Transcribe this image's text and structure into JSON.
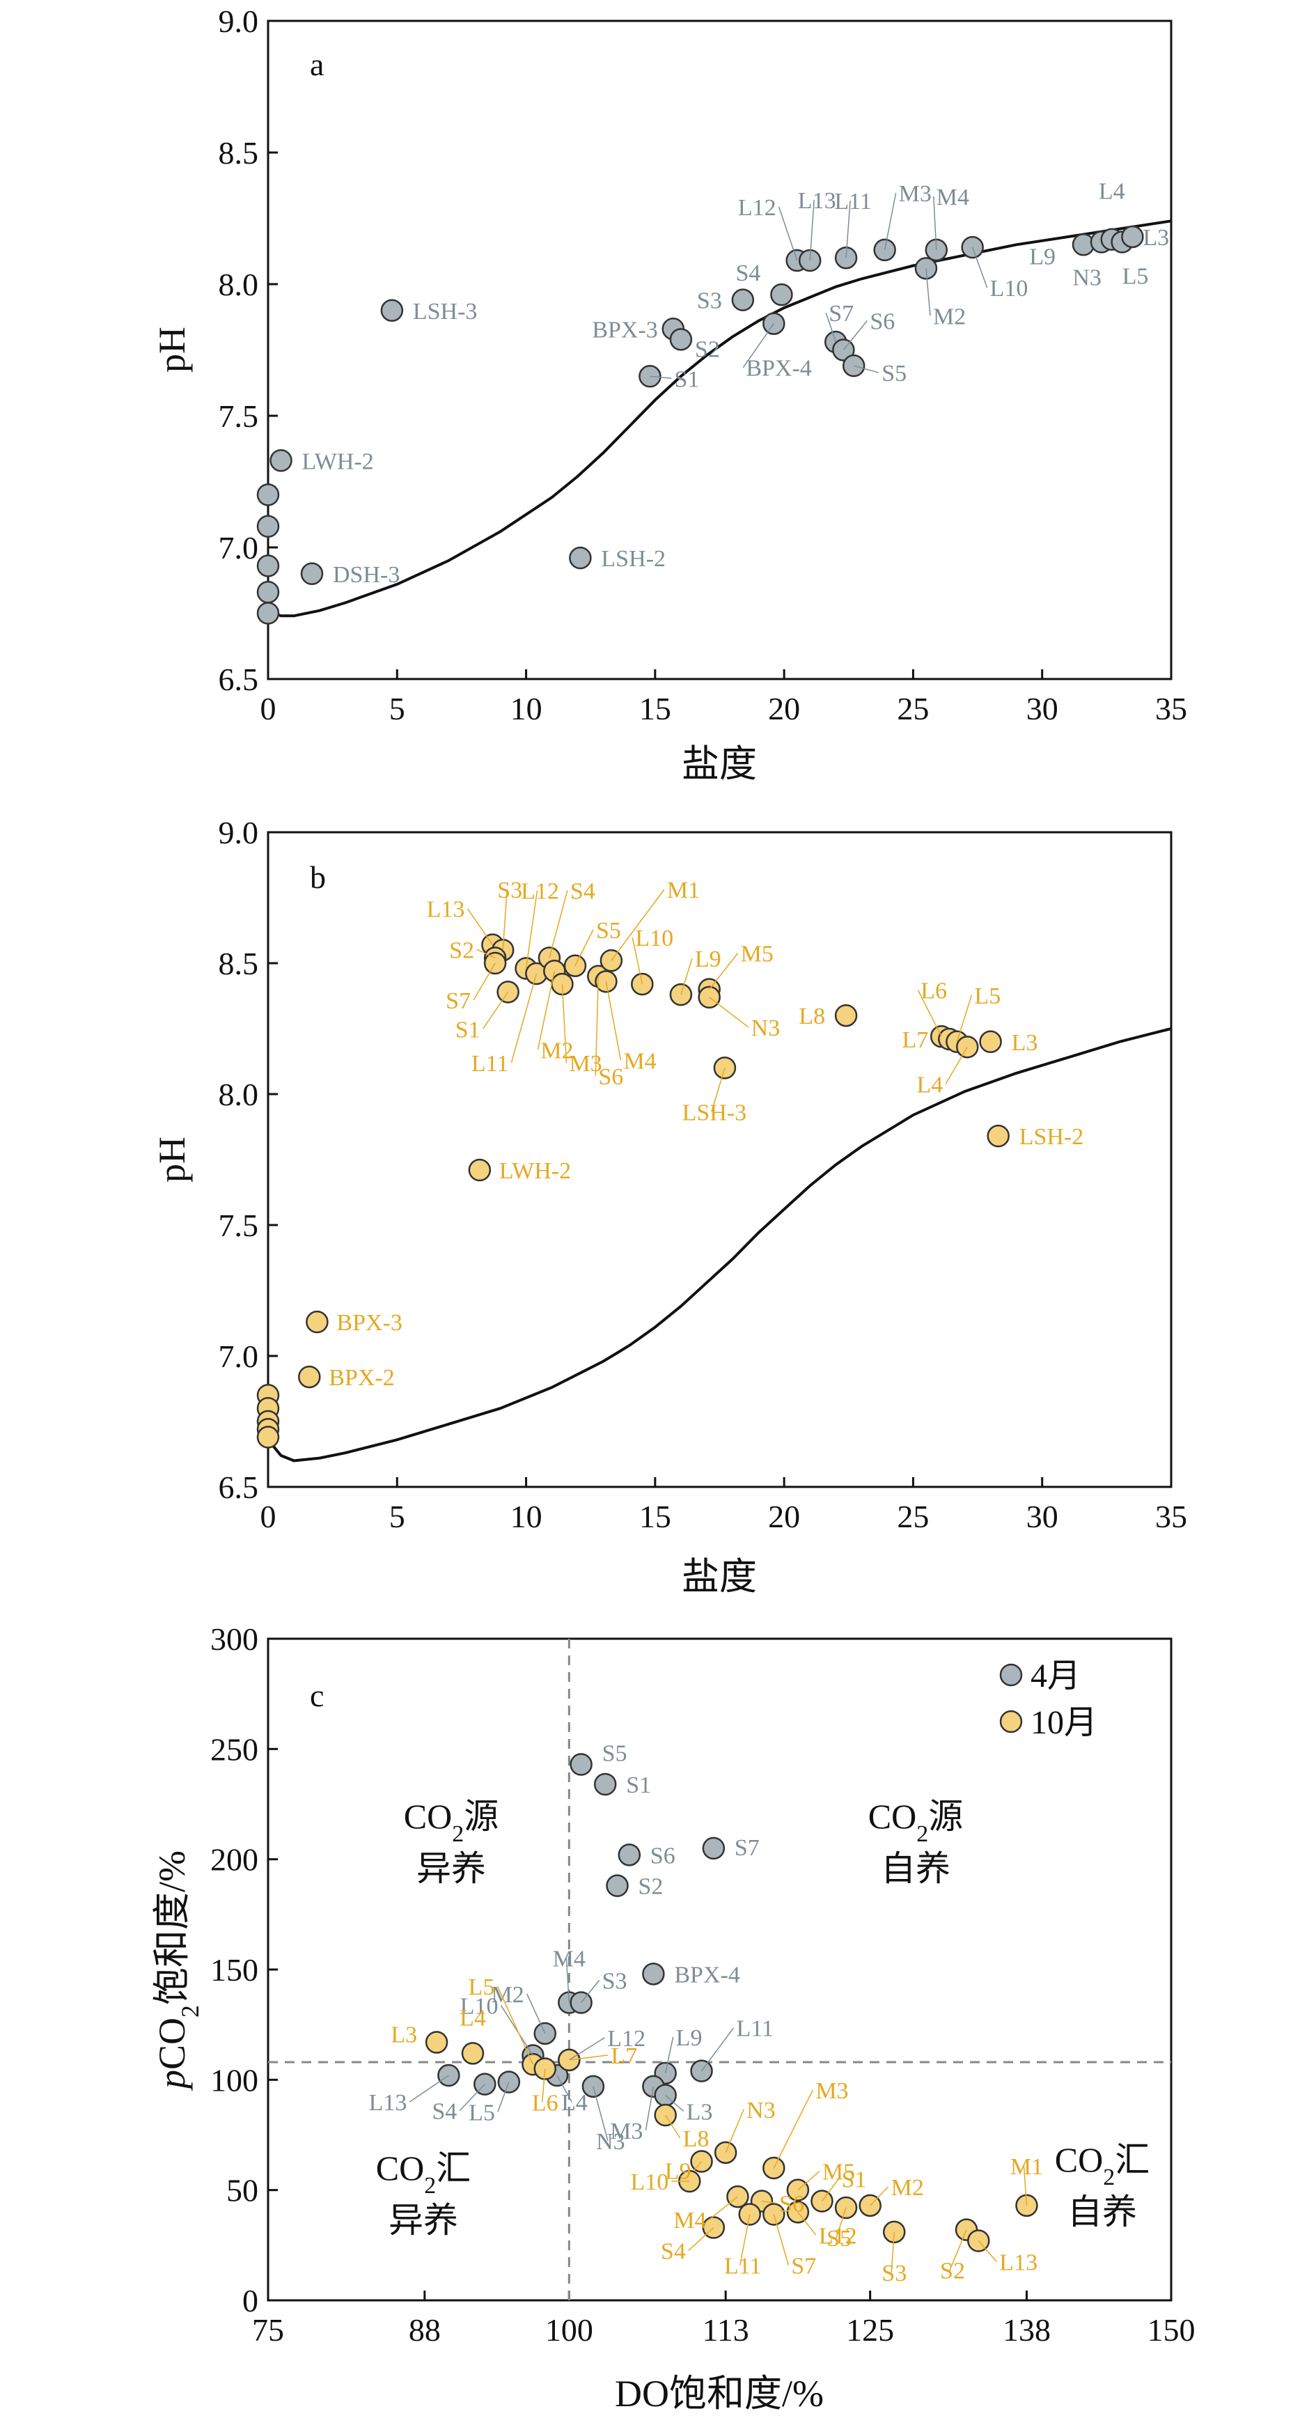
{
  "colors": {
    "april": "#aab6bc",
    "october": "#f5d27e",
    "april_label": "#7e8c94",
    "october_label": "#e6a820",
    "curve": "#111111",
    "reference_line": "#888888"
  },
  "chart_data": [
    {
      "type": "scatter",
      "panel_label": "a",
      "xlabel": "盐度",
      "ylabel": "pH",
      "xlim": [
        0,
        35
      ],
      "ylim": [
        6.5,
        9.0
      ],
      "xticks": [
        "0",
        "5",
        "10",
        "15",
        "20",
        "25",
        "30",
        "35"
      ],
      "yticks": [
        "6.5",
        "7.0",
        "7.5",
        "8.0",
        "8.5",
        "9.0"
      ],
      "curve": {
        "name": "",
        "x": [
          0,
          0.5,
          1,
          2,
          3,
          5,
          7,
          9,
          11,
          12,
          13,
          14,
          15,
          16,
          17,
          18,
          19,
          20,
          21,
          22,
          23,
          25,
          27,
          29,
          31,
          33,
          35
        ],
        "y": [
          6.76,
          6.74,
          6.74,
          6.76,
          6.79,
          6.86,
          6.95,
          7.06,
          7.19,
          7.27,
          7.36,
          7.46,
          7.56,
          7.65,
          7.73,
          7.8,
          7.86,
          7.91,
          7.95,
          7.99,
          8.02,
          8.07,
          8.11,
          8.15,
          8.18,
          8.21,
          8.24
        ]
      },
      "series": [
        {
          "name": "",
          "color": "#aab6bc",
          "points": [
            {
              "label": "",
              "x": 0,
              "y": 7.2
            },
            {
              "label": "",
              "x": 0,
              "y": 7.08
            },
            {
              "label": "",
              "x": 0,
              "y": 6.93
            },
            {
              "label": "",
              "x": 0,
              "y": 6.83
            },
            {
              "label": "",
              "x": 0,
              "y": 6.75
            },
            {
              "label": "LWH-2",
              "x": 0.5,
              "y": 7.33
            },
            {
              "label": "DSH-3",
              "x": 1.7,
              "y": 6.9
            },
            {
              "label": "LSH-3",
              "x": 4.8,
              "y": 7.9
            },
            {
              "label": "LSH-2",
              "x": 12.1,
              "y": 6.96
            },
            {
              "label": "S1",
              "x": 14.8,
              "y": 7.65
            },
            {
              "label": "BPX-3",
              "x": 15.7,
              "y": 7.83
            },
            {
              "label": "S2",
              "x": 16.0,
              "y": 7.79
            },
            {
              "label": "S3",
              "x": 18.4,
              "y": 7.94
            },
            {
              "label": "BPX-4",
              "x": 19.6,
              "y": 7.85
            },
            {
              "label": "S4",
              "x": 19.9,
              "y": 7.96
            },
            {
              "label": "L12",
              "x": 20.5,
              "y": 8.09
            },
            {
              "label": "L13",
              "x": 21.0,
              "y": 8.09
            },
            {
              "label": "S7",
              "x": 22.0,
              "y": 7.78
            },
            {
              "label": "S6",
              "x": 22.3,
              "y": 7.75
            },
            {
              "label": "S5",
              "x": 22.7,
              "y": 7.69
            },
            {
              "label": "L11",
              "x": 22.4,
              "y": 8.1
            },
            {
              "label": "M3",
              "x": 23.9,
              "y": 8.13
            },
            {
              "label": "M2",
              "x": 25.5,
              "y": 8.06
            },
            {
              "label": "M4",
              "x": 25.9,
              "y": 8.13
            },
            {
              "label": "L10",
              "x": 27.3,
              "y": 8.14
            },
            {
              "label": "L9",
              "x": 31.6,
              "y": 8.15
            },
            {
              "label": "N3",
              "x": 32.3,
              "y": 8.16
            },
            {
              "label": "L4",
              "x": 32.7,
              "y": 8.17
            },
            {
              "label": "L5",
              "x": 33.1,
              "y": 8.16
            },
            {
              "label": "L3",
              "x": 33.5,
              "y": 8.18
            }
          ]
        }
      ]
    },
    {
      "type": "scatter",
      "panel_label": "b",
      "xlabel": "盐度",
      "ylabel": "pH",
      "xlim": [
        0,
        35
      ],
      "ylim": [
        6.5,
        9.0
      ],
      "xticks": [
        "0",
        "5",
        "10",
        "15",
        "20",
        "25",
        "30",
        "35"
      ],
      "yticks": [
        "6.5",
        "7.0",
        "7.5",
        "8.0",
        "8.5",
        "9.0"
      ],
      "curve": {
        "name": "",
        "x": [
          0,
          0.5,
          1,
          2,
          3,
          5,
          7,
          9,
          11,
          12,
          13,
          14,
          15,
          16,
          17,
          18,
          19,
          20,
          21,
          22,
          23,
          25,
          27,
          29,
          31,
          33,
          35
        ],
        "y": [
          6.68,
          6.62,
          6.6,
          6.61,
          6.63,
          6.68,
          6.74,
          6.8,
          6.88,
          6.93,
          6.98,
          7.04,
          7.11,
          7.19,
          7.28,
          7.37,
          7.47,
          7.56,
          7.65,
          7.73,
          7.8,
          7.92,
          8.01,
          8.08,
          8.14,
          8.2,
          8.25
        ]
      },
      "series": [
        {
          "name": "",
          "color": "#f5d27e",
          "points": [
            {
              "label": "",
              "x": 0,
              "y": 6.85
            },
            {
              "label": "",
              "x": 0,
              "y": 6.8
            },
            {
              "label": "",
              "x": 0,
              "y": 6.75
            },
            {
              "label": "",
              "x": 0,
              "y": 6.72
            },
            {
              "label": "",
              "x": 0,
              "y": 6.69
            },
            {
              "label": "BPX-3",
              "x": 1.9,
              "y": 7.13
            },
            {
              "label": "BPX-2",
              "x": 1.6,
              "y": 6.92
            },
            {
              "label": "LWH-2",
              "x": 8.2,
              "y": 7.71
            },
            {
              "label": "L13",
              "x": 8.7,
              "y": 8.57
            },
            {
              "label": "S3",
              "x": 9.1,
              "y": 8.55
            },
            {
              "label": "S2",
              "x": 8.8,
              "y": 8.52
            },
            {
              "label": "S7",
              "x": 8.8,
              "y": 8.5
            },
            {
              "label": "S1",
              "x": 9.3,
              "y": 8.39
            },
            {
              "label": "L12",
              "x": 10.0,
              "y": 8.48
            },
            {
              "label": "L11",
              "x": 10.4,
              "y": 8.46
            },
            {
              "label": "S4",
              "x": 10.9,
              "y": 8.52
            },
            {
              "label": "M2",
              "x": 11.1,
              "y": 8.47
            },
            {
              "label": "M3",
              "x": 11.4,
              "y": 8.42
            },
            {
              "label": "S5",
              "x": 11.9,
              "y": 8.49
            },
            {
              "label": "S6",
              "x": 12.8,
              "y": 8.45
            },
            {
              "label": "M4",
              "x": 13.1,
              "y": 8.43
            },
            {
              "label": "M1",
              "x": 13.3,
              "y": 8.51
            },
            {
              "label": "L10",
              "x": 14.5,
              "y": 8.42
            },
            {
              "label": "L9",
              "x": 16.0,
              "y": 8.38
            },
            {
              "label": "M5",
              "x": 17.1,
              "y": 8.4
            },
            {
              "label": "N3",
              "x": 17.1,
              "y": 8.37
            },
            {
              "label": "LSH-3",
              "x": 17.7,
              "y": 8.1
            },
            {
              "label": "L8",
              "x": 22.4,
              "y": 8.3
            },
            {
              "label": "L6",
              "x": 26.1,
              "y": 8.22
            },
            {
              "label": "L7",
              "x": 26.4,
              "y": 8.21
            },
            {
              "label": "L5",
              "x": 26.7,
              "y": 8.2
            },
            {
              "label": "L4",
              "x": 27.1,
              "y": 8.18
            },
            {
              "label": "L3",
              "x": 28.0,
              "y": 8.2
            },
            {
              "label": "LSH-2",
              "x": 28.3,
              "y": 7.84
            }
          ]
        }
      ]
    },
    {
      "type": "scatter",
      "panel_label": "c",
      "xlabel": "DO饱和度/%",
      "ylabel_prefix": "p",
      "ylabel_main": "CO",
      "ylabel_sub": "2",
      "ylabel_suffix": "饱和度/%",
      "xlim": [
        75,
        150
      ],
      "ylim": [
        0,
        300
      ],
      "xticks_values": [
        75,
        88,
        100,
        113,
        125,
        138,
        150
      ],
      "xticks": [
        "75",
        "88",
        "100",
        "113",
        "125",
        "138",
        "150"
      ],
      "yticks": [
        "0",
        "50",
        "100",
        "150",
        "200",
        "250",
        "300"
      ],
      "reference_lines": {
        "x": 100,
        "y": 108
      },
      "quadrants": [
        {
          "line1_main": "CO",
          "line1_sub": "2",
          "line1_end": "源",
          "line2": "异养"
        },
        {
          "line1_main": "CO",
          "line1_sub": "2",
          "line1_end": "源",
          "line2": "自养"
        },
        {
          "line1_main": "CO",
          "line1_sub": "2",
          "line1_end": "汇",
          "line2": "异养"
        },
        {
          "line1_main": "CO",
          "line1_sub": "2",
          "line1_end": "汇",
          "line2": "自养"
        }
      ],
      "legend": {
        "position": "top-right",
        "entries": [
          "4月",
          "10月"
        ]
      },
      "series": [
        {
          "name": "4月",
          "color": "#aab6bc",
          "points": [
            {
              "label": "S5",
              "x": 101,
              "y": 243
            },
            {
              "label": "S1",
              "x": 103,
              "y": 234
            },
            {
              "label": "S6",
              "x": 105,
              "y": 202
            },
            {
              "label": "S2",
              "x": 104,
              "y": 188
            },
            {
              "label": "S7",
              "x": 112,
              "y": 205
            },
            {
              "label": "BPX-4",
              "x": 107,
              "y": 148
            },
            {
              "label": "M4",
              "x": 100,
              "y": 135
            },
            {
              "label": "S3",
              "x": 101,
              "y": 135
            },
            {
              "label": "M2",
              "x": 98,
              "y": 121
            },
            {
              "label": "L12",
              "x": 100,
              "y": 109
            },
            {
              "label": "L10",
              "x": 97,
              "y": 111
            },
            {
              "label": "L9",
              "x": 108,
              "y": 103
            },
            {
              "label": "L11",
              "x": 111,
              "y": 104
            },
            {
              "label": "L13",
              "x": 90,
              "y": 102
            },
            {
              "label": "S4",
              "x": 93,
              "y": 98
            },
            {
              "label": "L5",
              "x": 95,
              "y": 99
            },
            {
              "label": "L4",
              "x": 99,
              "y": 102
            },
            {
              "label": "N3",
              "x": 102,
              "y": 97
            },
            {
              "label": "M3",
              "x": 107,
              "y": 97
            },
            {
              "label": "L3",
              "x": 108,
              "y": 93
            }
          ]
        },
        {
          "name": "10月",
          "color": "#f5d27e",
          "points": [
            {
              "label": "L3",
              "x": 89,
              "y": 117
            },
            {
              "label": "L4",
              "x": 92,
              "y": 112
            },
            {
              "label": "L5",
              "x": 97,
              "y": 107
            },
            {
              "label": "L6",
              "x": 98,
              "y": 105
            },
            {
              "label": "L7",
              "x": 100,
              "y": 109
            },
            {
              "label": "L8",
              "x": 108,
              "y": 84
            },
            {
              "label": "N3",
              "x": 113,
              "y": 67
            },
            {
              "label": "L9",
              "x": 111,
              "y": 63
            },
            {
              "label": "L10",
              "x": 110,
              "y": 54
            },
            {
              "label": "M3",
              "x": 117,
              "y": 60
            },
            {
              "label": "M5",
              "x": 119,
              "y": 50
            },
            {
              "label": "M4",
              "x": 114,
              "y": 47
            },
            {
              "label": "S6",
              "x": 116,
              "y": 45
            },
            {
              "label": "S1",
              "x": 121,
              "y": 45
            },
            {
              "label": "S4",
              "x": 112,
              "y": 33
            },
            {
              "label": "L11",
              "x": 115,
              "y": 39
            },
            {
              "label": "S7",
              "x": 117,
              "y": 39
            },
            {
              "label": "L12",
              "x": 119,
              "y": 40
            },
            {
              "label": "S5",
              "x": 123,
              "y": 42
            },
            {
              "label": "M2",
              "x": 125,
              "y": 43
            },
            {
              "label": "S3",
              "x": 127,
              "y": 31
            },
            {
              "label": "S2",
              "x": 133,
              "y": 32
            },
            {
              "label": "L13",
              "x": 134,
              "y": 27
            },
            {
              "label": "M1",
              "x": 138,
              "y": 43
            }
          ]
        }
      ]
    }
  ]
}
